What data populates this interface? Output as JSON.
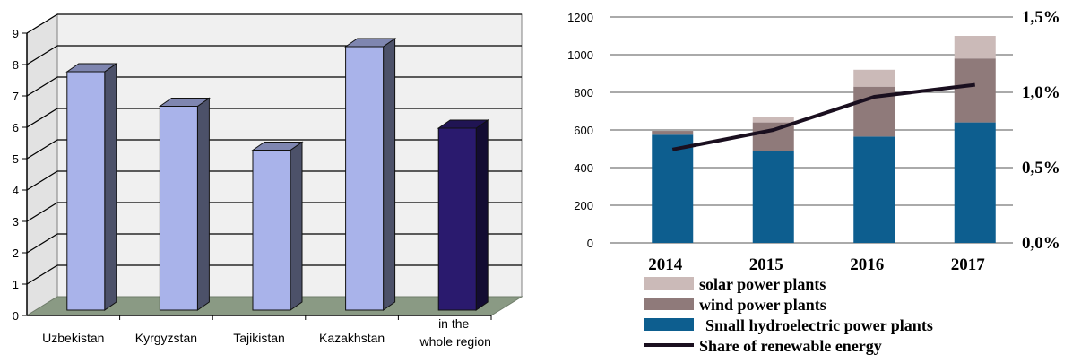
{
  "chart_data": [
    {
      "type": "bar",
      "categories": [
        "Uzbekistan",
        "Kyrgyzstan",
        "Tajikistan",
        "Kazakhstan",
        "in the whole region"
      ],
      "values": [
        7.6,
        6.5,
        5.1,
        8.4,
        5.8
      ],
      "ylim": [
        0,
        9
      ],
      "yticks": [
        "0",
        "1",
        "2",
        "3",
        "4",
        "5",
        "6",
        "7",
        "8",
        "9"
      ],
      "grid": true,
      "colors": [
        "#a9b3ea",
        "#a9b3ea",
        "#a9b3ea",
        "#a9b3ea",
        "#2a1a6e"
      ]
    },
    {
      "type": "bar",
      "stacked": true,
      "categories": [
        "2014",
        "2015",
        "2016",
        "2017"
      ],
      "series": [
        {
          "name": "Small hydroelectric power plants",
          "values": [
            575,
            490,
            565,
            640
          ],
          "color": "#0d5e8f"
        },
        {
          "name": "wind power plants",
          "values": [
            20,
            150,
            265,
            340
          ],
          "color": "#8f7a7a"
        },
        {
          "name": "solar power plants",
          "values": [
            0,
            30,
            90,
            120
          ],
          "color": "#cbbab8"
        }
      ],
      "line": {
        "name": "Share of renewable energy",
        "values": [
          0.62,
          0.75,
          0.97,
          1.05
        ],
        "color": "#1a0f1f",
        "axis": "right"
      },
      "ylim": [
        0,
        1200
      ],
      "yticks": [
        "0",
        "200",
        "400",
        "600",
        "800",
        "1000",
        "1200"
      ],
      "y2lim": [
        0,
        1.5
      ],
      "y2ticks": [
        "0,0%",
        "0,5%",
        "1,0%",
        "1,5%"
      ],
      "legend": "bottom",
      "grid": true
    }
  ]
}
